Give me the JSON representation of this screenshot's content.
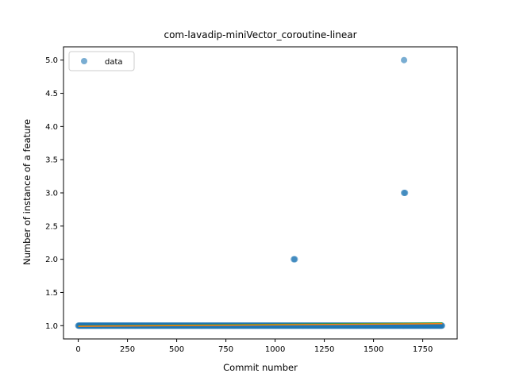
{
  "chart_data": {
    "type": "scatter",
    "title": "com-lavadip-miniVector_coroutine-linear",
    "xlabel": "Commit number",
    "ylabel": "Number of instance of a feature",
    "xlim": [
      -75,
      1925
    ],
    "ylim": [
      0.8,
      5.2
    ],
    "xticks": [
      0,
      250,
      500,
      750,
      1000,
      1250,
      1500,
      1750
    ],
    "yticks": [
      1.0,
      1.5,
      2.0,
      2.5,
      3.0,
      3.5,
      4.0,
      4.5,
      5.0
    ],
    "grid": false,
    "legend": {
      "placement": "top-left",
      "entries": [
        "data"
      ]
    },
    "colors": {
      "data": "#1f77b4",
      "fit": "#ff7f0e",
      "fit2": "#2ca02c"
    },
    "series": [
      {
        "name": "data",
        "marker": "circle",
        "baseline": {
          "y": 1.0,
          "x_start": 0,
          "x_end": 1850
        },
        "points": [
          {
            "x": 1095,
            "y": 2.0
          },
          {
            "x": 1100,
            "y": 2.0
          },
          {
            "x": 1655,
            "y": 3.0
          },
          {
            "x": 1660,
            "y": 3.0
          },
          {
            "x": 1655,
            "y": 5.0
          }
        ]
      }
    ],
    "fit_lines": [
      {
        "x": [
          0,
          1850
        ],
        "y": [
          0.995,
          1.04
        ]
      },
      {
        "x": [
          0,
          1850
        ],
        "y": [
          0.99,
          1.03
        ]
      }
    ]
  }
}
